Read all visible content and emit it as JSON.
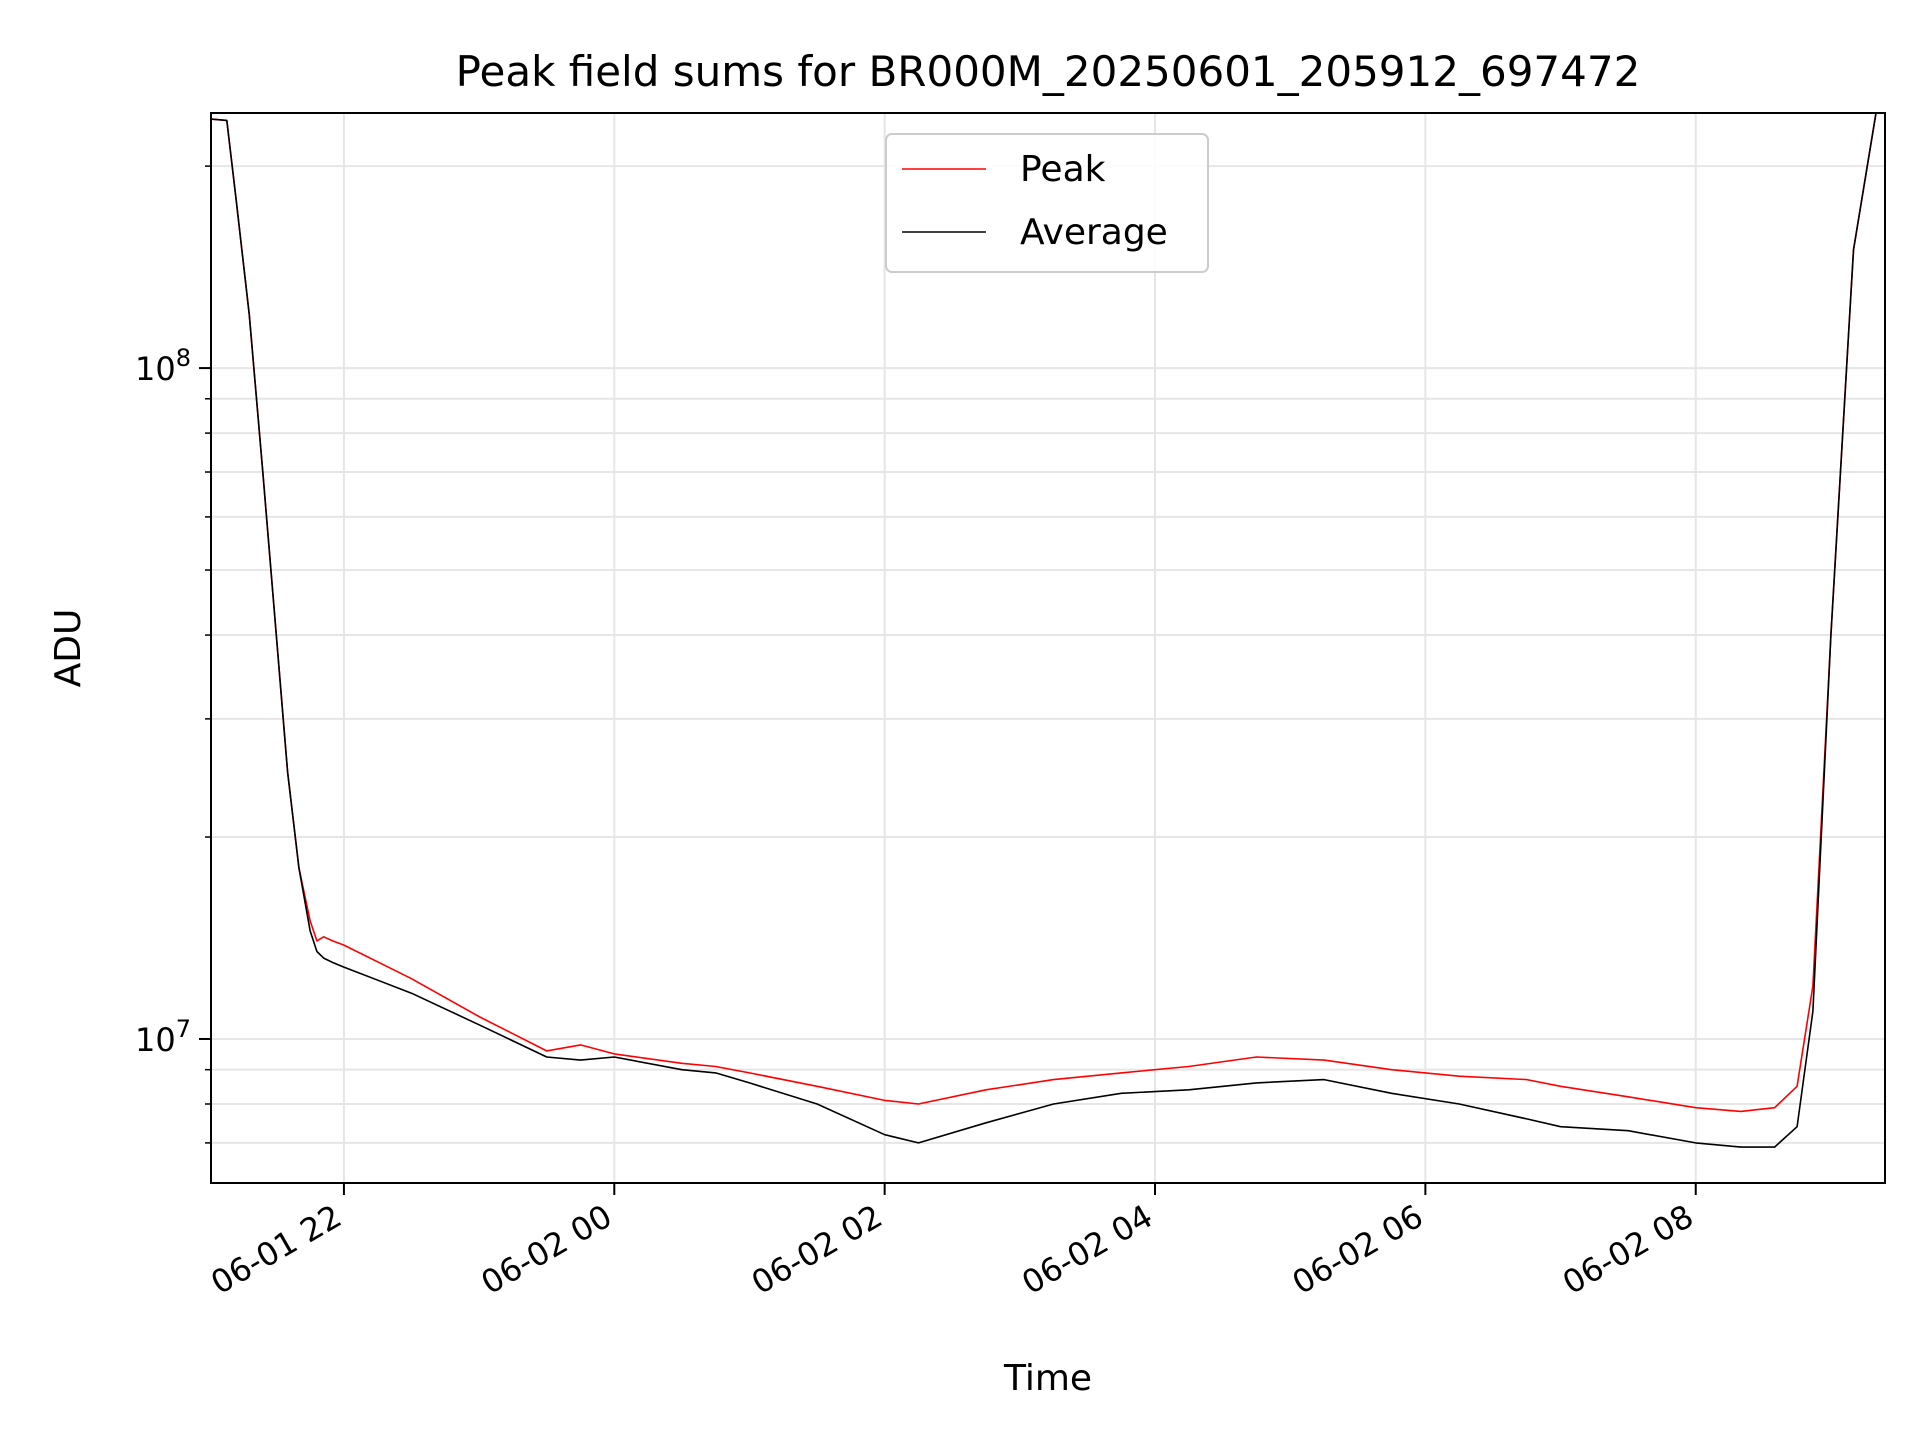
{
  "chart_data": {
    "type": "line",
    "title": "Peak field sums for BR000M_20250601_205912_697472",
    "xlabel": "Time",
    "ylabel": "ADU",
    "yscale": "log",
    "grid": true,
    "legend_placement": "top-center",
    "x_range": [
      "2025-06-01T21:01",
      "2025-06-02T09:24"
    ],
    "ylim": [
      6100000,
      240000000
    ],
    "x_ticks": [
      "2025-06-01T22:00",
      "2025-06-02T00:00",
      "2025-06-02T02:00",
      "2025-06-02T04:00",
      "2025-06-02T06:00",
      "2025-06-02T08:00"
    ],
    "x_tick_labels": [
      "06-01 22",
      "06-02 00",
      "06-02 02",
      "06-02 04",
      "06-02 06",
      "06-02 08"
    ],
    "y_major_ticks": [
      10000000,
      100000000
    ],
    "y_tick_labels": [
      {
        "base": "10",
        "exp": "7"
      },
      {
        "base": "10",
        "exp": "8"
      }
    ],
    "series": [
      {
        "name": "Peak",
        "color": "#ff0000",
        "x": [
          "2025-06-01T21:01",
          "2025-06-01T21:08",
          "2025-06-01T21:12",
          "2025-06-01T21:18",
          "2025-06-01T21:24",
          "2025-06-01T21:30",
          "2025-06-01T21:35",
          "2025-06-01T21:40",
          "2025-06-01T21:45",
          "2025-06-01T21:48",
          "2025-06-01T21:51",
          "2025-06-01T21:55",
          "2025-06-01T22:00",
          "2025-06-01T22:30",
          "2025-06-01T23:00",
          "2025-06-01T23:30",
          "2025-06-01T23:45",
          "2025-06-02T00:00",
          "2025-06-02T00:30",
          "2025-06-02T00:45",
          "2025-06-02T01:00",
          "2025-06-02T01:30",
          "2025-06-02T02:00",
          "2025-06-02T02:15",
          "2025-06-02T02:45",
          "2025-06-02T03:15",
          "2025-06-02T03:45",
          "2025-06-02T04:15",
          "2025-06-02T04:45",
          "2025-06-02T05:15",
          "2025-06-02T05:45",
          "2025-06-02T06:15",
          "2025-06-02T06:45",
          "2025-06-02T07:00",
          "2025-06-02T07:30",
          "2025-06-02T08:00",
          "2025-06-02T08:20",
          "2025-06-02T08:35",
          "2025-06-02T08:45",
          "2025-06-02T08:52",
          "2025-06-02T09:00",
          "2025-06-02T09:10",
          "2025-06-02T09:20"
        ],
        "values": [
          235000000,
          234000000,
          180000000,
          120000000,
          70000000,
          40000000,
          25000000,
          18000000,
          15000000,
          14000000,
          14200000,
          14000000,
          13800000,
          12300000,
          10800000,
          9600000,
          9800000,
          9500000,
          9200000,
          9100000,
          8900000,
          8500000,
          8100000,
          8000000,
          8400000,
          8700000,
          8900000,
          9100000,
          9400000,
          9300000,
          9000000,
          8800000,
          8700000,
          8500000,
          8200000,
          7900000,
          7800000,
          7900000,
          8500000,
          12000000,
          40000000,
          150000000,
          240000000
        ]
      },
      {
        "name": "Average",
        "color": "#000000",
        "x": [
          "2025-06-01T21:01",
          "2025-06-01T21:08",
          "2025-06-01T21:12",
          "2025-06-01T21:18",
          "2025-06-01T21:24",
          "2025-06-01T21:30",
          "2025-06-01T21:35",
          "2025-06-01T21:40",
          "2025-06-01T21:45",
          "2025-06-01T21:48",
          "2025-06-01T21:51",
          "2025-06-01T21:55",
          "2025-06-01T22:00",
          "2025-06-01T22:30",
          "2025-06-01T23:00",
          "2025-06-01T23:30",
          "2025-06-01T23:45",
          "2025-06-02T00:00",
          "2025-06-02T00:30",
          "2025-06-02T00:45",
          "2025-06-02T01:00",
          "2025-06-02T01:30",
          "2025-06-02T02:00",
          "2025-06-02T02:15",
          "2025-06-02T02:45",
          "2025-06-02T03:15",
          "2025-06-02T03:45",
          "2025-06-02T04:15",
          "2025-06-02T04:45",
          "2025-06-02T05:15",
          "2025-06-02T05:45",
          "2025-06-02T06:15",
          "2025-06-02T06:45",
          "2025-06-02T07:00",
          "2025-06-02T07:30",
          "2025-06-02T08:00",
          "2025-06-02T08:20",
          "2025-06-02T08:35",
          "2025-06-02T08:45",
          "2025-06-02T08:52",
          "2025-06-02T09:00",
          "2025-06-02T09:10",
          "2025-06-02T09:20"
        ],
        "values": [
          235000000,
          234000000,
          180000000,
          120000000,
          70000000,
          40000000,
          25000000,
          18000000,
          14500000,
          13500000,
          13200000,
          13000000,
          12800000,
          11700000,
          10500000,
          9400000,
          9300000,
          9400000,
          9000000,
          8900000,
          8600000,
          8000000,
          7200000,
          7000000,
          7500000,
          8000000,
          8300000,
          8400000,
          8600000,
          8700000,
          8300000,
          8000000,
          7600000,
          7400000,
          7300000,
          7000000,
          6900000,
          6900000,
          7400000,
          11000000,
          40000000,
          150000000,
          240000000
        ]
      }
    ]
  }
}
